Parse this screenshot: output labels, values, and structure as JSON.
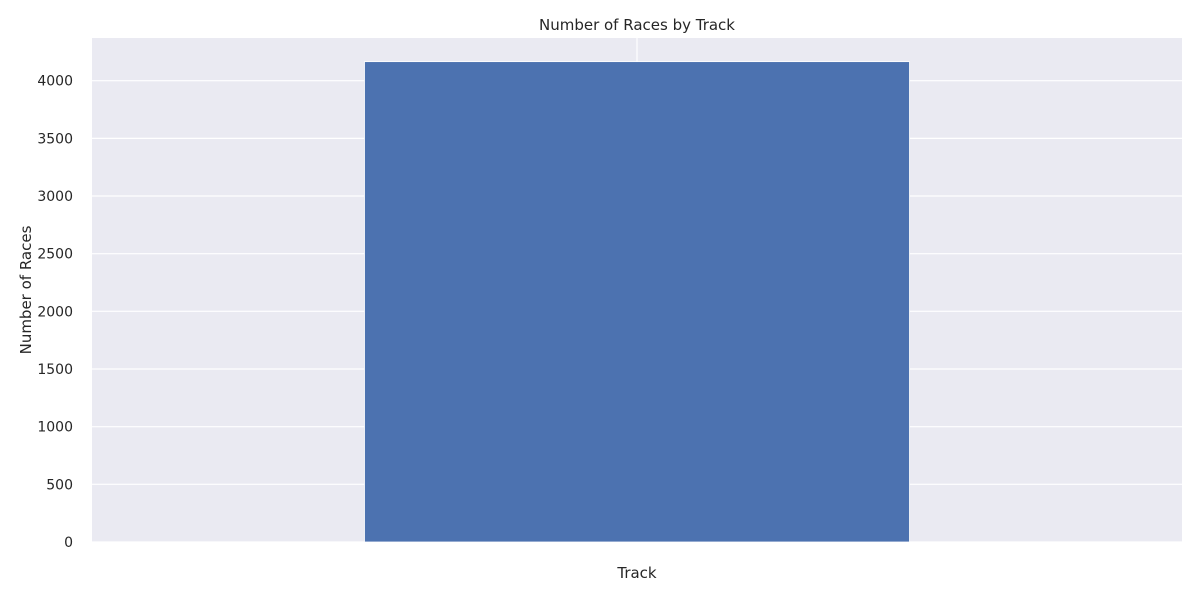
{
  "chart_data": {
    "type": "bar",
    "title": "Number of Races by Track",
    "xlabel": "Track",
    "ylabel": "Number of Races",
    "categories": [
      ""
    ],
    "values": [
      4165
    ],
    "ylim": [
      0,
      4370
    ],
    "yticks": [
      0,
      500,
      1000,
      1500,
      2000,
      2500,
      3000,
      3500,
      4000
    ],
    "grid": true,
    "legend": "none",
    "colors": {
      "background": "#EAEAF2",
      "bar": "#4C72B0",
      "grid": "#FFFFFF"
    }
  }
}
